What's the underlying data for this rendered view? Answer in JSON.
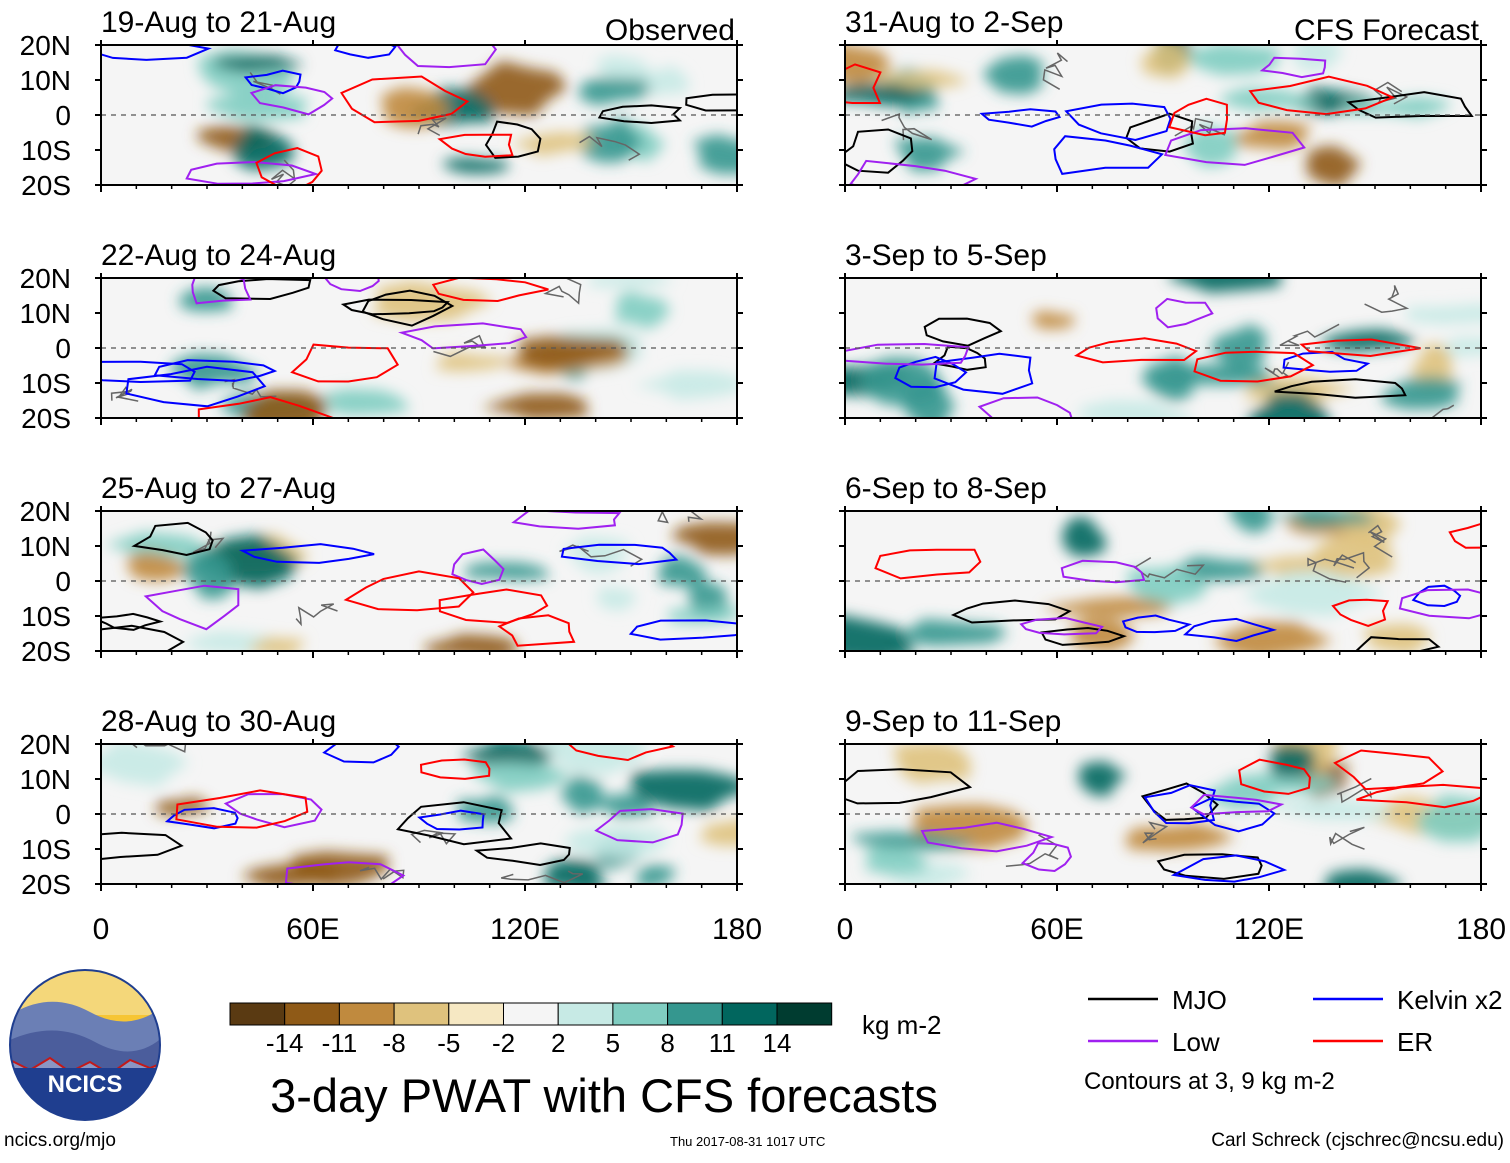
{
  "chart_data": {
    "type": "heatmap",
    "title": "3-day PWAT with CFS forecasts",
    "columns": [
      {
        "header": "Observed",
        "panels": [
          "19-Aug to 21-Aug",
          "22-Aug to 24-Aug",
          "25-Aug to 27-Aug",
          "28-Aug to 30-Aug"
        ]
      },
      {
        "header": "CFS Forecast",
        "panels": [
          "31-Aug to 2-Sep",
          "3-Sep to 5-Sep",
          "6-Sep to 8-Sep",
          "9-Sep to 11-Sep"
        ]
      }
    ],
    "x_axis": {
      "range": [
        0,
        180
      ],
      "ticks": [
        0,
        60,
        120,
        180
      ],
      "tick_labels": [
        "0",
        "60E",
        "120E",
        "180"
      ]
    },
    "y_axis": {
      "range": [
        -20,
        20
      ],
      "ticks": [
        20,
        10,
        0,
        -10,
        -20
      ],
      "tick_labels": [
        "20N",
        "10N",
        "0",
        "10S",
        "20S"
      ]
    },
    "colorbar": {
      "unit": "kg m-2",
      "levels": [
        -14,
        -11,
        -8,
        -5,
        -2,
        2,
        5,
        8,
        11,
        14
      ],
      "tick_labels": [
        "-14",
        "-11",
        "-8",
        "-5",
        "-2",
        "2",
        "5",
        "8",
        "11",
        "14"
      ],
      "colors": [
        "#5a3a12",
        "#8f5a17",
        "#c08a3e",
        "#dfc27d",
        "#f6e8c3",
        "#f5f5f5",
        "#c7eae5",
        "#80cdc1",
        "#35978f",
        "#01665e",
        "#003c30"
      ]
    },
    "contour_legend": [
      {
        "label": "MJO",
        "color": "#000000"
      },
      {
        "label": "Kelvin x2",
        "color": "#0000ff"
      },
      {
        "label": "Low",
        "color": "#a020f0"
      },
      {
        "label": "ER",
        "color": "#ff0000"
      }
    ],
    "contour_note": "Contours at 3, 9 kg m-2"
  },
  "footer": {
    "logo_text": "NCICS",
    "url": "ncics.org/mjo",
    "timestamp": "Thu 2017-08-31 1017 UTC",
    "credit": "Carl Schreck (cjschrec@ncsu.edu)"
  }
}
